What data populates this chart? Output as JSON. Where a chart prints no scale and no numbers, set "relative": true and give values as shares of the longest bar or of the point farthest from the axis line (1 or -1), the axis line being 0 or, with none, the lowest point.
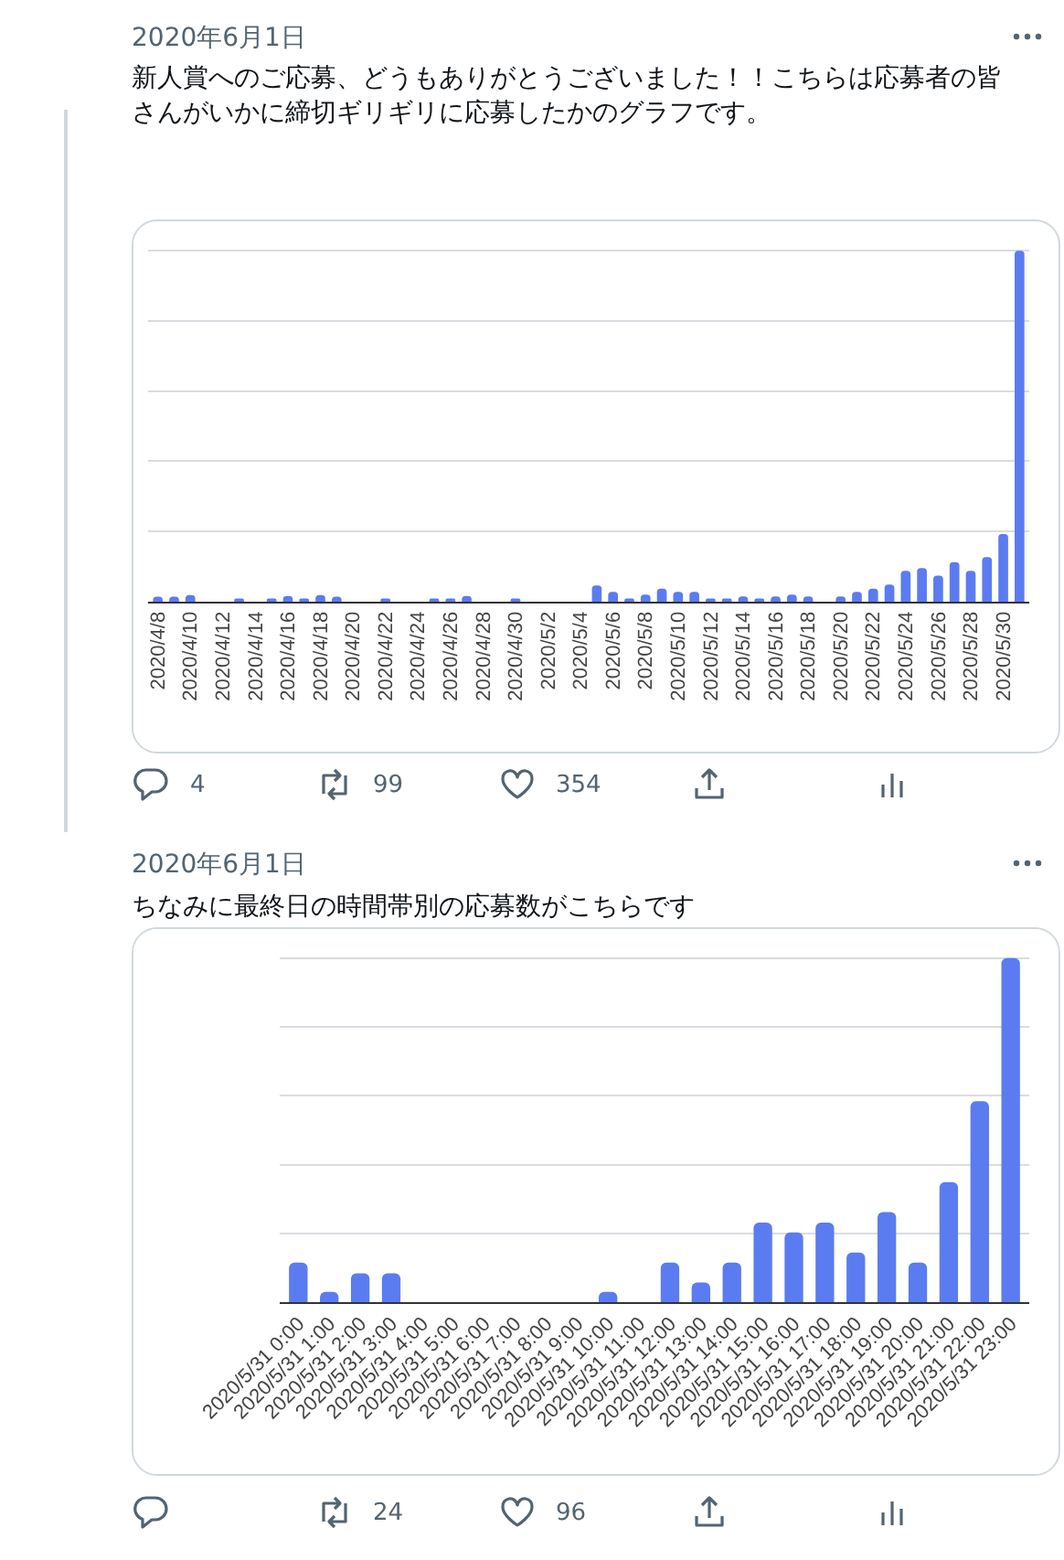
{
  "chart_data": [
    {
      "type": "bar",
      "title": "新人賞へのご応募、どうもありがとうございました！！こちらは応募者の皆さんがいかに締切ギリギリに応募したかのグラフです。",
      "annotations": [
        "2020年6月1日",
        "4",
        "99",
        "354"
      ],
      "categories": [
        "2020/4/8",
        null,
        "2020/4/10",
        null,
        "2020/4/12",
        null,
        "2020/4/14",
        null,
        "2020/4/16",
        null,
        "2020/4/18",
        null,
        "2020/4/20",
        null,
        "2020/4/22",
        null,
        "2020/4/24",
        null,
        "2020/4/26",
        null,
        "2020/4/28",
        null,
        "2020/4/30",
        null,
        "2020/5/2",
        null,
        "2020/5/4",
        null,
        "2020/5/6",
        null,
        "2020/5/8",
        null,
        "2020/5/10",
        null,
        "2020/5/12",
        null,
        "2020/5/14",
        null,
        "2020/5/16",
        null,
        "2020/5/18",
        null,
        "2020/5/20",
        null,
        "2020/5/22",
        null,
        "2020/5/24",
        null,
        "2020/5/26",
        null,
        "2020/5/28",
        null,
        "2020/5/30",
        null
      ],
      "values": [
        0.014,
        0.014,
        0.019,
        0,
        0,
        0.009,
        0,
        0.009,
        0.016,
        0.009,
        0.019,
        0.014,
        0,
        0,
        0.009,
        0,
        0,
        0.009,
        0.009,
        0.016,
        0,
        0,
        0.009,
        0,
        0,
        0,
        0,
        0.046,
        0.028,
        0.009,
        0.02,
        0.037,
        0.028,
        0.028,
        0.009,
        0.009,
        0.015,
        0.009,
        0.015,
        0.02,
        0.015,
        0,
        0.015,
        0.028,
        0.037,
        0.049,
        0.088,
        0.096,
        0.074,
        0.113,
        0.088,
        0.127,
        0.193,
        1
      ],
      "color": "#5b7cf0",
      "relative": true,
      "grid": "y"
    },
    {
      "type": "bar",
      "title": "ちなみに最終日の時間帯別の応募数がこちらです",
      "annotations": [
        "2020年6月1日",
        "24",
        "96"
      ],
      "categories": [
        "2020/5/31 0:00",
        "2020/5/31 1:00",
        "2020/5/31 2:00",
        "2020/5/31 3:00",
        "2020/5/31 4:00",
        "2020/5/31 5:00",
        "2020/5/31 6:00",
        "2020/5/31 7:00",
        "2020/5/31 8:00",
        "2020/5/31 9:00",
        "2020/5/31 10:00",
        "2020/5/31 11:00",
        "2020/5/31 12:00",
        "2020/5/31 13:00",
        "2020/5/31 14:00",
        "2020/5/31 15:00",
        "2020/5/31 16:00",
        "2020/5/31 17:00",
        "2020/5/31 18:00",
        "2020/5/31 19:00",
        "2020/5/31 20:00",
        "2020/5/31 21:00",
        "2020/5/31 22:00",
        "2020/5/31 23:00"
      ],
      "values": [
        0.115,
        0.03,
        0.084,
        0.084,
        0,
        0,
        0,
        0,
        0,
        0,
        0.03,
        0,
        0.115,
        0.057,
        0.115,
        0.231,
        0.203,
        0.231,
        0.144,
        0.262,
        0.115,
        0.349,
        0.584,
        1
      ],
      "color": "#5b7cf0",
      "relative": true,
      "grid": "y"
    }
  ]
}
